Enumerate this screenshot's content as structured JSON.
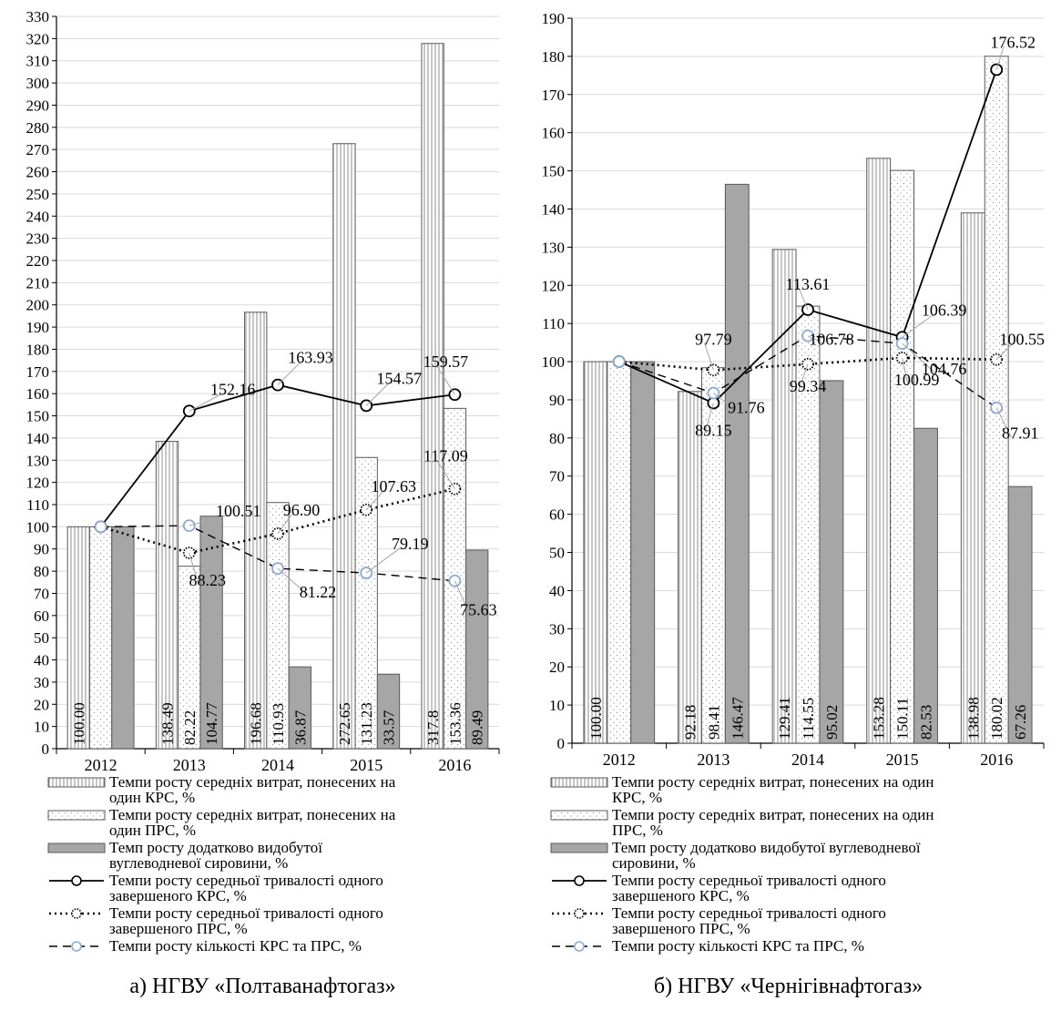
{
  "colors": {
    "axis": "#000000",
    "grid": "#d9d9d9",
    "bar_fill_solid": "#a6a6a6",
    "bar_fill_light": "#ffffff",
    "marker_kilkist": "#8eaadb",
    "label_leader": "#a6a6a6"
  },
  "legend_labels": {
    "s1": "Темпи росту середніх витрат, понесених на один КРС, %",
    "s2": "Темпи росту середніх витрат, понесених на один ПРС, %",
    "s3": "Темп росту додатково видобутої вуглеводневої сировини, %",
    "s4": "Темпи росту середньої тривалості одного завершеного КРС, %",
    "s5": "Темпи росту середньої тривалості одного завершеного ПРС, %",
    "s6": "Темпи росту кількості КРС та ПРС, %"
  },
  "chart_data": [
    {
      "type": "bar",
      "caption": "а) НГВУ «Полтаванафтогаз»",
      "categories": [
        "2012",
        "2013",
        "2014",
        "2015",
        "2016"
      ],
      "ylim": [
        0,
        330
      ],
      "yticks": [
        0,
        10,
        20,
        30,
        40,
        50,
        60,
        70,
        80,
        90,
        100,
        110,
        120,
        130,
        140,
        150,
        160,
        170,
        180,
        190,
        200,
        210,
        220,
        230,
        240,
        250,
        260,
        270,
        280,
        290,
        300,
        310,
        320,
        330
      ],
      "grid": true,
      "legend_position": "bottom",
      "bar_series": [
        {
          "name": "Темпи росту середніх витрат, понесених на один КРС, %",
          "values": [
            100.0,
            138.49,
            196.68,
            272.65,
            317.8
          ],
          "labels": [
            "100.00",
            "138.49",
            "196.68",
            "272.65",
            "317.8"
          ]
        },
        {
          "name": "Темпи росту середніх витрат, понесених на один ПРС, %",
          "values": [
            100.0,
            82.22,
            110.93,
            131.23,
            153.36
          ],
          "labels": [
            "",
            "82.22",
            "110.93",
            "131.23",
            "153.36"
          ]
        },
        {
          "name": "Темп росту додатково видобутої вуглеводневої сировини, %",
          "values": [
            100.0,
            104.77,
            36.87,
            33.57,
            89.49
          ],
          "labels": [
            "",
            "104.77",
            "36.87",
            "33.57",
            "89.49"
          ]
        }
      ],
      "line_series": [
        {
          "name": "Темпи росту середньої тривалості одного завершеного КРС, %",
          "values": [
            100.0,
            152.16,
            163.93,
            154.57,
            159.57
          ],
          "labels": [
            "",
            "152.16",
            "163.93",
            "154.57",
            "159.57"
          ]
        },
        {
          "name": "Темпи росту середньої тривалості одного завершеного ПРС, %",
          "values": [
            100.0,
            88.23,
            96.9,
            107.63,
            117.09
          ],
          "labels": [
            "",
            "88.23",
            "96.90",
            "107.63",
            "117.09"
          ]
        },
        {
          "name": "Темпи росту кількості КРС та ПРС, %",
          "values": [
            100.0,
            100.51,
            81.22,
            79.19,
            75.63
          ],
          "labels": [
            "",
            "100.51",
            "81.22",
            "79.19",
            "75.63"
          ]
        }
      ]
    },
    {
      "type": "bar",
      "caption": "б) НГВУ «Чернігівнафтогаз»",
      "categories": [
        "2012",
        "2013",
        "2014",
        "2015",
        "2016"
      ],
      "ylim": [
        0,
        190
      ],
      "yticks": [
        0,
        10,
        20,
        30,
        40,
        50,
        60,
        70,
        80,
        90,
        100,
        110,
        120,
        130,
        140,
        150,
        160,
        170,
        180,
        190
      ],
      "grid": true,
      "legend_position": "bottom",
      "bar_series": [
        {
          "name": "Темпи росту середніх витрат, понесених на один КРС, %",
          "values": [
            100.0,
            92.18,
            129.41,
            153.28,
            138.98
          ],
          "labels": [
            "100.00",
            "92.18",
            "129.41",
            "153.28",
            "138.98"
          ]
        },
        {
          "name": "Темпи росту середніх витрат, понесених на один ПРС, %",
          "values": [
            100.0,
            98.41,
            114.55,
            150.11,
            180.02
          ],
          "labels": [
            "",
            "98.41",
            "114.55",
            "150.11",
            "180.02"
          ]
        },
        {
          "name": "Темп росту додатково видобутої вуглеводневої сировини, %",
          "values": [
            100.0,
            146.47,
            95.02,
            82.53,
            67.26
          ],
          "labels": [
            "",
            "146.47",
            "95.02",
            "82.53",
            "67.26"
          ]
        }
      ],
      "line_series": [
        {
          "name": "Темпи росту середньої тривалості одного завершеного КРС, %",
          "values": [
            100.0,
            89.15,
            113.61,
            106.39,
            176.52
          ],
          "labels": [
            "",
            "89.15",
            "113.61",
            "106.39",
            "176.52"
          ]
        },
        {
          "name": "Темпи росту середньої тривалості одного завершеного ПРС, %",
          "values": [
            100.0,
            97.79,
            99.34,
            100.99,
            100.55
          ],
          "labels": [
            "",
            "97.79",
            "99.34",
            "100.99",
            "100.55"
          ]
        },
        {
          "name": "Темпи росту кількості КРС та ПРС, %",
          "values": [
            100.0,
            91.76,
            106.78,
            104.76,
            87.91
          ],
          "labels": [
            "",
            "91.76",
            "106.78",
            "104.76",
            "87.91"
          ]
        }
      ]
    }
  ]
}
